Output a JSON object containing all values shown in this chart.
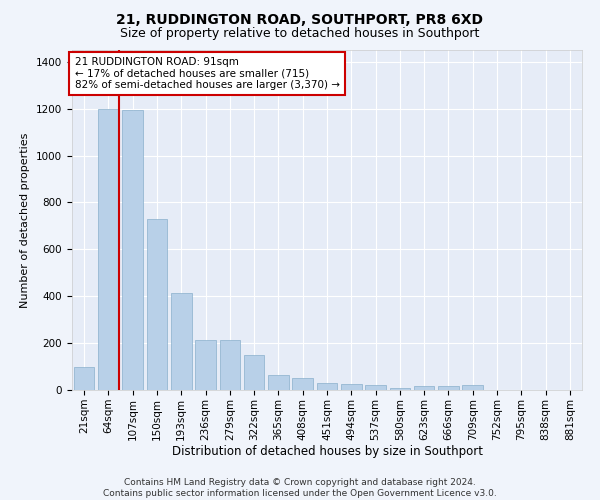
{
  "title": "21, RUDDINGTON ROAD, SOUTHPORT, PR8 6XD",
  "subtitle": "Size of property relative to detached houses in Southport",
  "xlabel": "Distribution of detached houses by size in Southport",
  "ylabel": "Number of detached properties",
  "categories": [
    "21sqm",
    "64sqm",
    "107sqm",
    "150sqm",
    "193sqm",
    "236sqm",
    "279sqm",
    "322sqm",
    "365sqm",
    "408sqm",
    "451sqm",
    "494sqm",
    "537sqm",
    "580sqm",
    "623sqm",
    "666sqm",
    "709sqm",
    "752sqm",
    "795sqm",
    "838sqm",
    "881sqm"
  ],
  "values": [
    100,
    1200,
    1195,
    730,
    415,
    215,
    215,
    148,
    65,
    50,
    30,
    25,
    20,
    10,
    18,
    18,
    22,
    0,
    0,
    0,
    0
  ],
  "bar_color": "#b8d0e8",
  "bar_edge_color": "#8ab0cc",
  "property_line_x": 1.45,
  "property_line_color": "#cc0000",
  "annotation_text": "21 RUDDINGTON ROAD: 91sqm\n← 17% of detached houses are smaller (715)\n82% of semi-detached houses are larger (3,370) →",
  "annotation_box_facecolor": "#ffffff",
  "annotation_box_edgecolor": "#cc0000",
  "ylim": [
    0,
    1450
  ],
  "yticks": [
    0,
    200,
    400,
    600,
    800,
    1000,
    1200,
    1400
  ],
  "bg_color": "#f0f4fb",
  "plot_bg_color": "#e6ecf7",
  "grid_color": "#ffffff",
  "footer": "Contains HM Land Registry data © Crown copyright and database right 2024.\nContains public sector information licensed under the Open Government Licence v3.0.",
  "title_fontsize": 10,
  "subtitle_fontsize": 9,
  "xlabel_fontsize": 8.5,
  "ylabel_fontsize": 8,
  "tick_fontsize": 7.5,
  "annotation_fontsize": 7.5,
  "footer_fontsize": 6.5
}
